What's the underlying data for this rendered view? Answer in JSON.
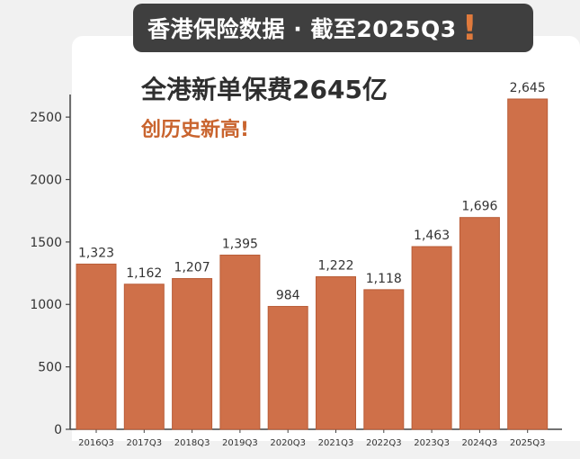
{
  "banner": {
    "title": "香港保险数据 · 截至2025Q3",
    "exclaim": "!"
  },
  "headline": "全港新单保费2645亿",
  "subhead": "创历史新高!",
  "colors": {
    "bar": "#cf7049",
    "bar_edge": "#b95d38",
    "axis": "#444444",
    "text": "#333333",
    "accent": "#e07a3c"
  },
  "chart_data": {
    "type": "bar",
    "title": "全港新单保费2645亿",
    "xlabel": "",
    "ylabel": "",
    "categories": [
      "2016Q3",
      "2017Q3",
      "2018Q3",
      "2019Q3",
      "2020Q3",
      "2021Q3",
      "2022Q3",
      "2023Q3",
      "2024Q3",
      "2025Q3"
    ],
    "values": [
      1323,
      1162,
      1207,
      1395,
      984,
      1222,
      1118,
      1463,
      1696,
      2645
    ],
    "value_labels": [
      "1,323",
      "1,162",
      "1,207",
      "1,395",
      "984",
      "1,222",
      "1,118",
      "1,463",
      "1,696",
      "2,645"
    ],
    "ylim": [
      0,
      2645
    ],
    "yticks": [
      0,
      500,
      1000,
      1500,
      2000,
      2500
    ],
    "grid": false,
    "legend": "none"
  }
}
